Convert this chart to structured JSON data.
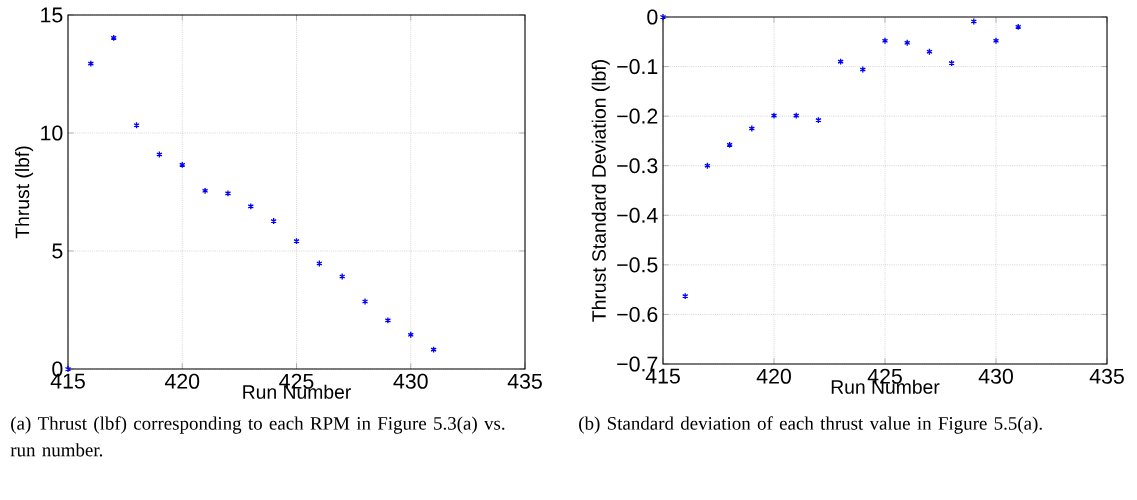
{
  "chart_data": [
    {
      "type": "scatter",
      "xlabel": "Run Number",
      "ylabel": "Thrust (lbf)",
      "x": [
        415,
        416,
        417,
        418,
        419,
        420,
        421,
        422,
        423,
        424,
        425,
        426,
        427,
        428,
        429,
        430,
        431
      ],
      "series": [
        {
          "color": "#0000ff",
          "values": [
            0,
            12.94,
            14.03,
            10.33,
            9.09,
            8.65,
            7.55,
            7.44,
            6.89,
            6.27,
            5.42,
            4.47,
            3.92,
            2.86,
            2.06,
            1.45,
            0.82
          ]
        }
      ],
      "xlim": [
        415,
        435
      ],
      "xticks": [
        415,
        420,
        425,
        430,
        435
      ],
      "ylim": [
        0,
        15
      ],
      "yticks": [
        0,
        5,
        10,
        15
      ],
      "grid": true,
      "marker": "cross",
      "annotations": [
        "(a) Thrust (lbf) corresponding to each RPM in Figure 5.3(a) vs. run number."
      ]
    },
    {
      "type": "scatter",
      "xlabel": "Run Number",
      "ylabel": "Thrust Standard Deviation (lbf)",
      "x": [
        415,
        416,
        417,
        418,
        419,
        420,
        421,
        422,
        423,
        424,
        425,
        426,
        427,
        428,
        429,
        430,
        431
      ],
      "series": [
        {
          "color": "#0000ff",
          "values": [
            0,
            -0.563,
            -0.3,
            -0.258,
            -0.225,
            -0.199,
            -0.199,
            -0.208,
            -0.09,
            -0.106,
            -0.048,
            -0.052,
            -0.07,
            -0.093,
            -0.009,
            -0.048,
            -0.02
          ]
        }
      ],
      "xlim": [
        415,
        435
      ],
      "xticks": [
        415,
        420,
        425,
        430,
        435
      ],
      "ylim": [
        -0.7,
        0
      ],
      "yticks": [
        {
          "value": -0.7,
          "label": "−0.7"
        },
        {
          "value": -0.6,
          "label": "−0.6"
        },
        {
          "value": -0.5,
          "label": "−0.5"
        },
        {
          "value": -0.4,
          "label": "−0.4"
        },
        {
          "value": -0.3,
          "label": "−0.3"
        },
        {
          "value": -0.2,
          "label": "−0.2"
        },
        {
          "value": -0.1,
          "label": "−0.1"
        },
        0
      ],
      "grid": true,
      "marker": "cross",
      "annotations": [
        "(b) Standard deviation of each thrust value in Figure 5.5(a)."
      ]
    }
  ]
}
